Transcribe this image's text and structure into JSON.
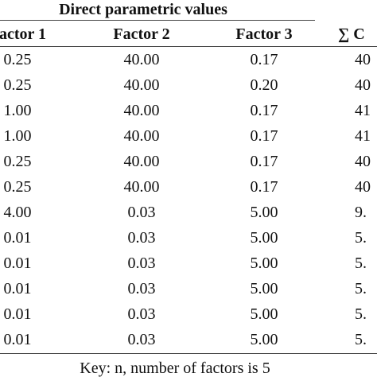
{
  "table": {
    "title": "Direct parametric values",
    "headers": [
      "actor 1",
      "Factor 2",
      "Factor 3",
      "∑ C"
    ],
    "rows": [
      [
        "0.25",
        "40.00",
        "0.17",
        "40"
      ],
      [
        "0.25",
        "40.00",
        "0.20",
        "40"
      ],
      [
        "1.00",
        "40.00",
        "0.17",
        "41"
      ],
      [
        "1.00",
        "40.00",
        "0.17",
        "41"
      ],
      [
        "0.25",
        "40.00",
        "0.17",
        "40"
      ],
      [
        "0.25",
        "40.00",
        "0.17",
        "40"
      ],
      [
        "4.00",
        "0.03",
        "5.00",
        "9."
      ],
      [
        "0.01",
        "0.03",
        "5.00",
        "5."
      ],
      [
        "0.01",
        "0.03",
        "5.00",
        "5."
      ],
      [
        "0.01",
        "0.03",
        "5.00",
        "5."
      ],
      [
        "0.01",
        "0.03",
        "5.00",
        "5."
      ],
      [
        "0.01",
        "0.03",
        "5.00",
        "5."
      ]
    ]
  },
  "key": "Key: n, number of factors is 5"
}
